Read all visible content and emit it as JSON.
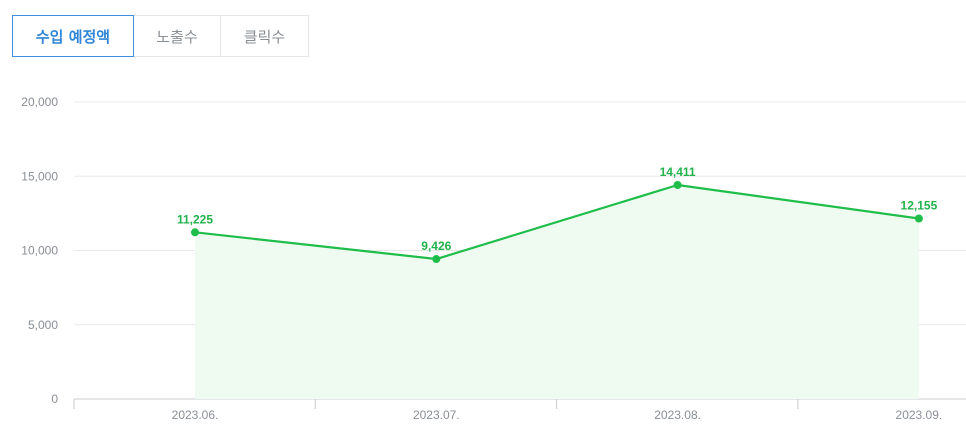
{
  "tabs": [
    {
      "label": "수입 예정액",
      "active": true
    },
    {
      "label": "노출수",
      "active": false
    },
    {
      "label": "클릭수",
      "active": false
    }
  ],
  "colors": {
    "line": "#1fbd4a",
    "area": "#effbf0",
    "grid": "#e6e8eb",
    "axis": "#c9ccd0",
    "active_tab": "#2f86d8"
  },
  "chart_data": {
    "type": "area",
    "categories": [
      "2023.06.",
      "2023.07.",
      "2023.08.",
      "2023.09."
    ],
    "values": [
      11225,
      9426,
      14411,
      12155
    ],
    "value_labels": [
      "11,225",
      "9,426",
      "14,411",
      "12,155"
    ],
    "yticks": [
      "0",
      "5,000",
      "10,000",
      "15,000",
      "20,000"
    ],
    "ylim": [
      0,
      20000
    ],
    "grid": true
  }
}
